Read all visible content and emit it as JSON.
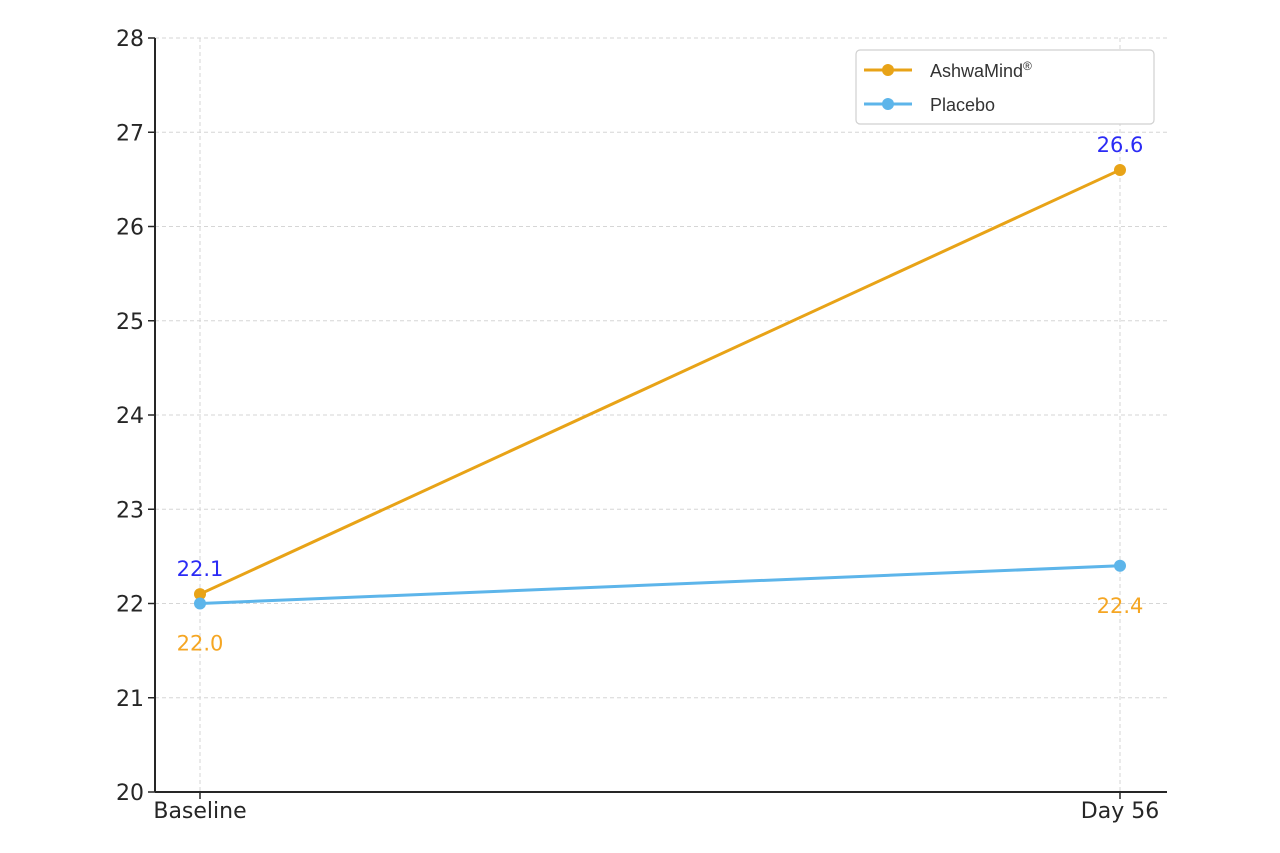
{
  "chart_data": {
    "type": "line",
    "title": "",
    "xlabel": "",
    "ylabel": "",
    "categories": [
      "Baseline",
      "Day 56"
    ],
    "ylim": [
      20,
      28
    ],
    "yticks": [
      "20",
      "21",
      "22",
      "23",
      "24",
      "25",
      "26",
      "27",
      "28"
    ],
    "grid": true,
    "legend_placement": "top-right",
    "series": [
      {
        "name": "AshwaMind",
        "name_sup": "®",
        "values": [
          22.1,
          26.6
        ],
        "color": "#E8A317"
      },
      {
        "name": "Placebo",
        "values": [
          22.0,
          22.4
        ],
        "color": "#5DB5EA"
      }
    ],
    "annotations": [
      {
        "text": "22.1",
        "x": "Baseline",
        "y": 22.1,
        "position": "above",
        "color": "#2B2BF5"
      },
      {
        "text": "22.0",
        "x": "Baseline",
        "y": 22.0,
        "position": "below",
        "color": "#F5A623"
      },
      {
        "text": "26.6",
        "x": "Day 56",
        "y": 26.6,
        "position": "above",
        "color": "#2B2BF5"
      },
      {
        "text": "22.4",
        "x": "Day 56",
        "y": 22.4,
        "position": "below",
        "color": "#F5A623"
      }
    ]
  }
}
